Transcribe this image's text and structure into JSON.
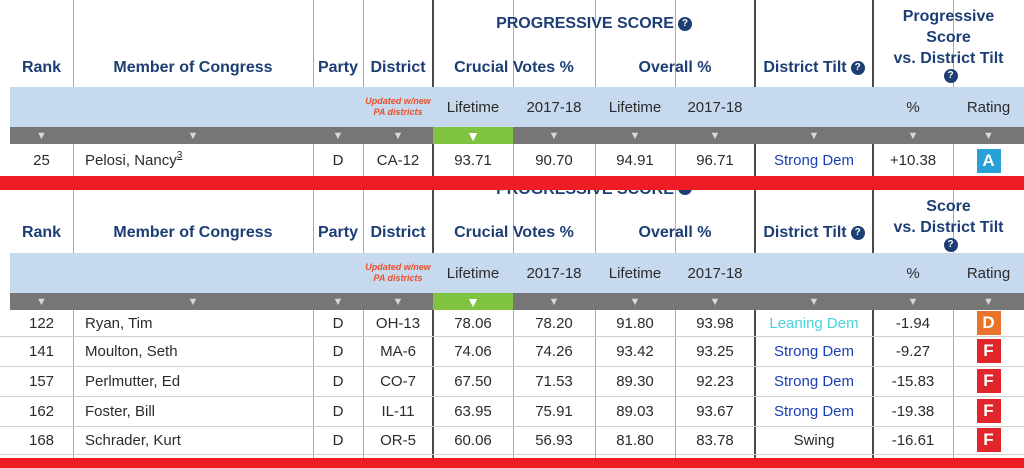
{
  "headers": {
    "rank": "Rank",
    "member": "Member of Congress",
    "party": "Party",
    "district": "District",
    "progressive_score": "PROGRESSIVE SCORE",
    "progressive_score_line1": "Progressive",
    "progressive_score_line2": "Score",
    "vs_district_tilt": "vs. District Tilt",
    "crucial_votes": "Crucial Votes %",
    "overall": "Overall %",
    "district_tilt": "District Tilt",
    "lifetime": "Lifetime",
    "year": "2017-18",
    "percent": "%",
    "rating": "Rating",
    "updated_note": "Updated w/new PA districts",
    "sort_glyph": "▼",
    "help_glyph": "?"
  },
  "top_rows": [
    {
      "rank": "25",
      "name": "Pelosi, Nancy",
      "footnote": "3",
      "party": "D",
      "district": "CA-12",
      "cv_lifetime": "93.71",
      "cv_year": "90.70",
      "ov_lifetime": "94.91",
      "ov_year": "96.71",
      "tilt": "Strong Dem",
      "tilt_class": "strong",
      "vs": "+10.38",
      "grade": "A",
      "grade_color": "#2aa0d6"
    }
  ],
  "bottom_rows": [
    {
      "rank": "122",
      "name": "Ryan, Tim",
      "party": "D",
      "district": "OH-13",
      "cv_lifetime": "78.06",
      "cv_year": "78.20",
      "ov_lifetime": "91.80",
      "ov_year": "93.98",
      "tilt": "Leaning Dem",
      "tilt_class": "leaning",
      "vs": "-1.94",
      "grade": "D",
      "grade_color": "#e8742a"
    },
    {
      "rank": "141",
      "name": "Moulton, Seth",
      "party": "D",
      "district": "MA-6",
      "cv_lifetime": "74.06",
      "cv_year": "74.26",
      "ov_lifetime": "93.42",
      "ov_year": "93.25",
      "tilt": "Strong Dem",
      "tilt_class": "strong",
      "vs": "-9.27",
      "grade": "F",
      "grade_color": "#e0262b"
    },
    {
      "rank": "157",
      "name": "Perlmutter, Ed",
      "party": "D",
      "district": "CO-7",
      "cv_lifetime": "67.50",
      "cv_year": "71.53",
      "ov_lifetime": "89.30",
      "ov_year": "92.23",
      "tilt": "Strong Dem",
      "tilt_class": "strong",
      "vs": "-15.83",
      "grade": "F",
      "grade_color": "#e0262b"
    },
    {
      "rank": "162",
      "name": "Foster, Bill",
      "party": "D",
      "district": "IL-11",
      "cv_lifetime": "63.95",
      "cv_year": "75.91",
      "ov_lifetime": "89.03",
      "ov_year": "93.67",
      "tilt": "Strong Dem",
      "tilt_class": "strong",
      "vs": "-19.38",
      "grade": "F",
      "grade_color": "#e0262b"
    },
    {
      "rank": "168",
      "name": "Schrader, Kurt",
      "party": "D",
      "district": "OR-5",
      "cv_lifetime": "60.06",
      "cv_year": "56.93",
      "ov_lifetime": "81.80",
      "ov_year": "83.78",
      "tilt": "Swing",
      "tilt_class": "swing",
      "vs": "-16.61",
      "grade": "F",
      "grade_color": "#e0262b"
    }
  ],
  "colors": {
    "stripe": "#ee1c25",
    "header_text": "#1d3e74",
    "subheader_bg": "#c7d9ef",
    "sorter_bg": "#767676",
    "sorter_active": "#80c341"
  }
}
